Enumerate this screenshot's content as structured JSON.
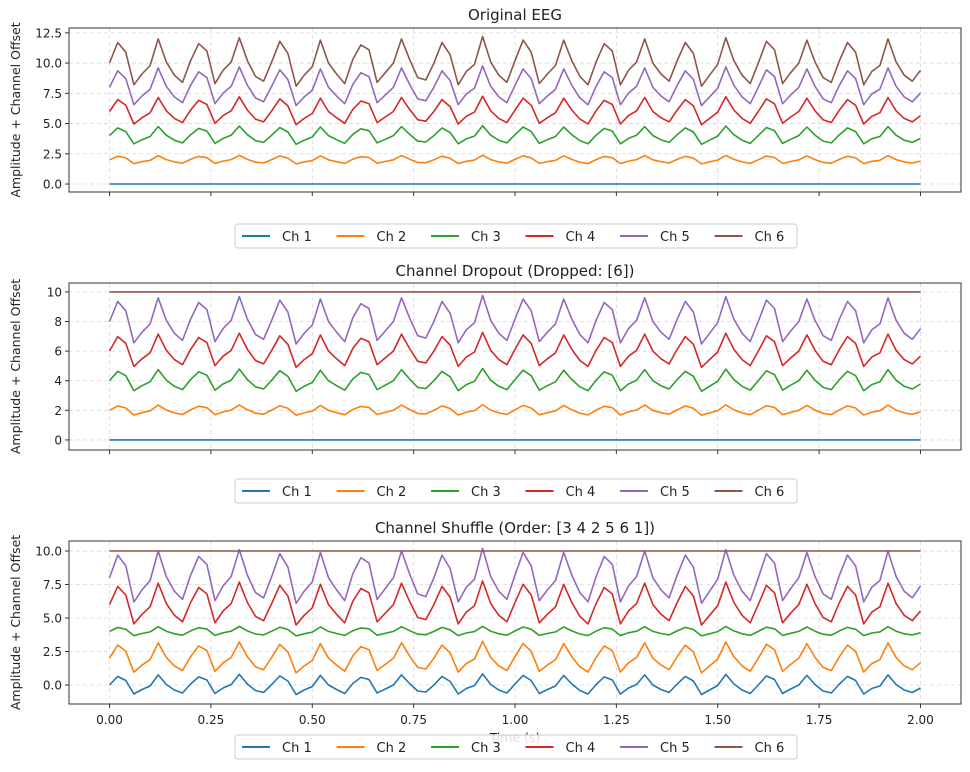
{
  "chart_data": {
    "type": "line",
    "shared_x": {
      "label": "Time (s)",
      "range": [
        -0.1,
        2.1
      ],
      "ticks": [
        0.0,
        0.25,
        0.5,
        0.75,
        1.0,
        1.25,
        1.5,
        1.75,
        2.0
      ],
      "tick_labels": [
        "0.00",
        "0.25",
        "0.50",
        "0.75",
        "1.00",
        "1.25",
        "1.50",
        "1.75",
        "2.00"
      ],
      "time_step": 0.02
    },
    "base_waveform": [
      0.0,
      0.85,
      0.45,
      -0.9,
      -0.45,
      -0.1,
      1.0,
      0.05,
      -0.5,
      -0.8,
      0.1,
      0.8,
      0.5,
      -0.85,
      -0.3,
      0.05,
      1.05,
      0.1,
      -0.55,
      -0.75,
      0.05,
      0.9,
      0.4,
      -0.95,
      -0.5,
      -0.15,
      0.95,
      0.0,
      -0.45,
      -0.85,
      0.15,
      0.75,
      0.55,
      -0.8,
      -0.4,
      0.0,
      1.0,
      0.15,
      -0.6,
      -0.7,
      0.0,
      0.85,
      0.35,
      -0.9,
      -0.35,
      -0.05,
      1.1,
      0.05,
      -0.5,
      -0.8,
      0.1,
      0.95,
      0.45,
      -0.85,
      -0.45,
      -0.1,
      0.95,
      0.1,
      -0.55,
      -0.9,
      0.05,
      0.8,
      0.5,
      -0.9,
      -0.3,
      0.05,
      1.0,
      0.0,
      -0.45,
      -0.75,
      0.1,
      0.85,
      0.4,
      -0.95,
      -0.5,
      -0.05,
      1.05,
      0.1,
      -0.5,
      -0.85,
      0.0,
      0.9,
      0.55,
      -0.85,
      -0.4,
      0.0,
      0.95,
      0.05,
      -0.6,
      -0.8,
      0.1,
      0.85,
      0.45,
      -0.9,
      -0.35,
      -0.1,
      1.0,
      0.05,
      -0.5,
      -0.75,
      -0.3
    ],
    "legend_placement": "below each panel",
    "grid": true,
    "panels": [
      {
        "title": "Original EEG",
        "ylabel": "Amplitude + Channel Offset",
        "ylim": [
          -0.66,
          12.9
        ],
        "yticks": [
          0.0,
          2.5,
          5.0,
          7.5,
          10.0,
          12.5
        ],
        "ytick_labels": [
          "0.0",
          "2.5",
          "5.0",
          "7.5",
          "10.0",
          "12.5"
        ],
        "series": [
          {
            "name": "Ch 1",
            "color": "#1f77b4",
            "offset": 0,
            "gain": 0
          },
          {
            "name": "Ch 2",
            "color": "#ff7f0e",
            "offset": 2,
            "gain": 0.35
          },
          {
            "name": "Ch 3",
            "color": "#2ca02c",
            "offset": 4,
            "gain": 0.75
          },
          {
            "name": "Ch 4",
            "color": "#d62728",
            "offset": 6,
            "gain": 1.15
          },
          {
            "name": "Ch 5",
            "color": "#9467bd",
            "offset": 8,
            "gain": 1.6
          },
          {
            "name": "Ch 6",
            "color": "#8c564b",
            "offset": 10,
            "gain": 2.0
          }
        ]
      },
      {
        "title": "Channel Dropout (Dropped: [6])",
        "ylabel": "Amplitude + Channel Offset",
        "ylim": [
          -0.68,
          10.6
        ],
        "yticks": [
          0,
          2,
          4,
          6,
          8,
          10
        ],
        "ytick_labels": [
          "0",
          "2",
          "4",
          "6",
          "8",
          "10"
        ],
        "series": [
          {
            "name": "Ch 1",
            "color": "#1f77b4",
            "offset": 0,
            "gain": 0
          },
          {
            "name": "Ch 2",
            "color": "#ff7f0e",
            "offset": 2,
            "gain": 0.35
          },
          {
            "name": "Ch 3",
            "color": "#2ca02c",
            "offset": 4,
            "gain": 0.75
          },
          {
            "name": "Ch 4",
            "color": "#d62728",
            "offset": 6,
            "gain": 1.15
          },
          {
            "name": "Ch 5",
            "color": "#9467bd",
            "offset": 8,
            "gain": 1.6
          },
          {
            "name": "Ch 6",
            "color": "#8c564b",
            "offset": 10,
            "gain": 0
          }
        ]
      },
      {
        "title": "Channel Shuffle (Order: [3 4 2 5 6 1])",
        "ylabel": "Amplitude + Channel Offset",
        "ylim": [
          -1.42,
          10.75
        ],
        "yticks": [
          0.0,
          2.5,
          5.0,
          7.5,
          10.0
        ],
        "ytick_labels": [
          "0.0",
          "2.5",
          "5.0",
          "7.5",
          "10.0"
        ],
        "series": [
          {
            "name": "Ch 1",
            "color": "#1f77b4",
            "offset": 0,
            "gain": 0.75
          },
          {
            "name": "Ch 2",
            "color": "#ff7f0e",
            "offset": 2,
            "gain": 1.15
          },
          {
            "name": "Ch 3",
            "color": "#2ca02c",
            "offset": 4,
            "gain": 0.35
          },
          {
            "name": "Ch 4",
            "color": "#d62728",
            "offset": 6,
            "gain": 1.6
          },
          {
            "name": "Ch 5",
            "color": "#9467bd",
            "offset": 8,
            "gain": 2.0
          },
          {
            "name": "Ch 6",
            "color": "#8c564b",
            "offset": 10,
            "gain": 0
          }
        ]
      }
    ]
  }
}
